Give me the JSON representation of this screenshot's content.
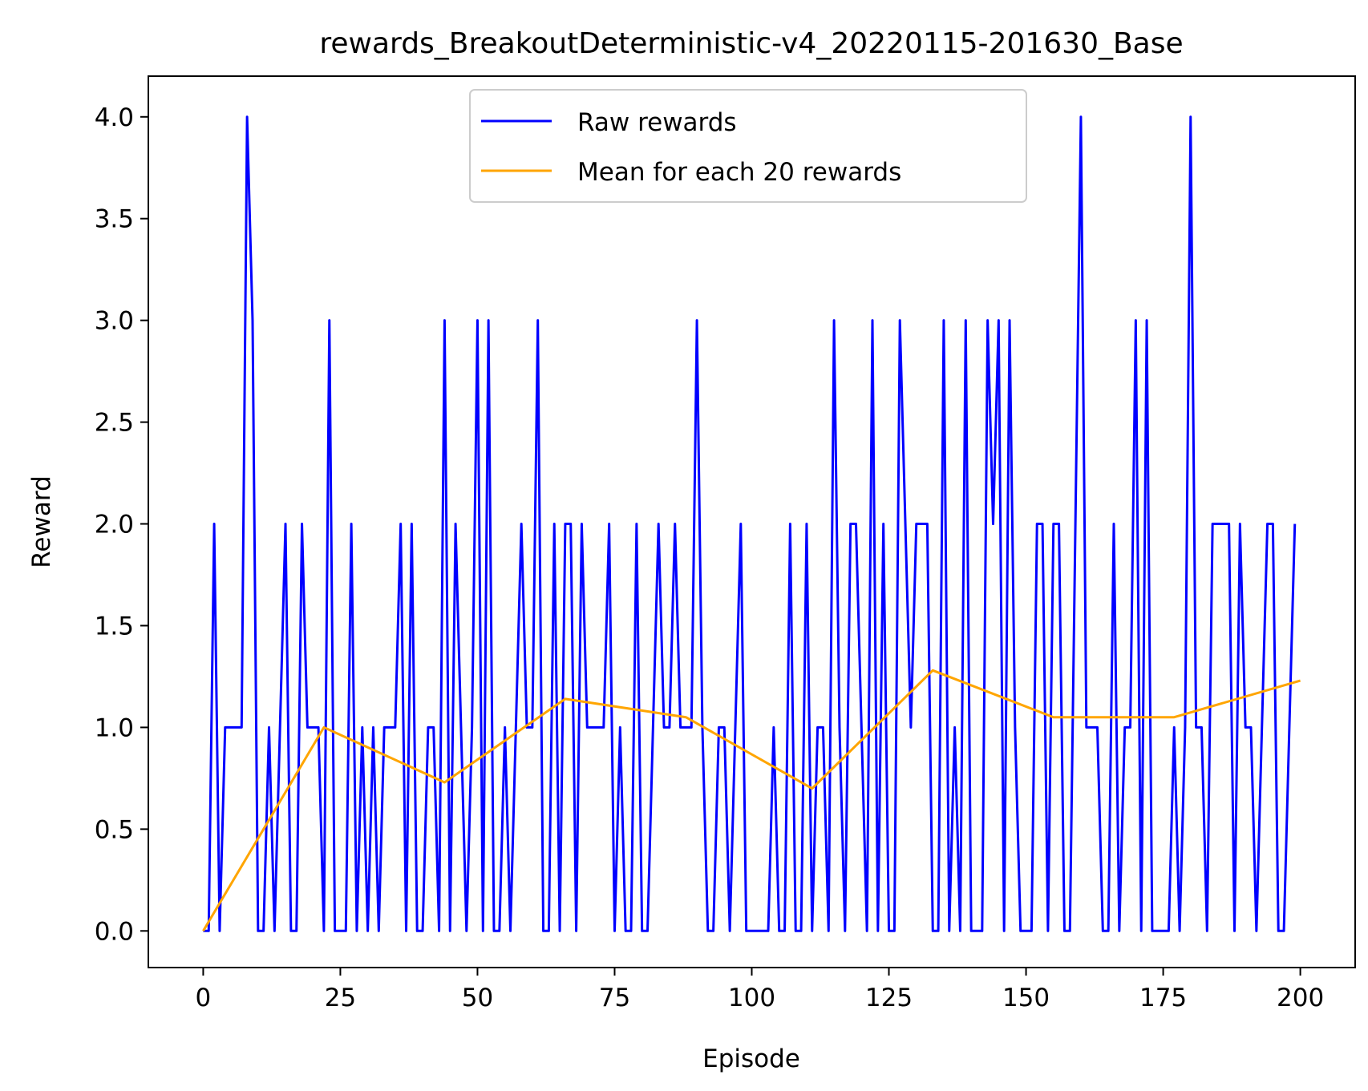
{
  "chart_data": {
    "type": "line",
    "title": "rewards_BreakoutDeterministic-v4_20220115-201630_Base",
    "xlabel": "Episode",
    "ylabel": "Reward",
    "xlim": [
      -10,
      210
    ],
    "ylim": [
      -0.18,
      4.2
    ],
    "xticks": [
      0,
      25,
      50,
      75,
      100,
      125,
      150,
      175,
      200
    ],
    "xtick_labels": [
      "0",
      "25",
      "50",
      "75",
      "100",
      "125",
      "150",
      "175",
      "200"
    ],
    "yticks": [
      0.0,
      0.5,
      1.0,
      1.5,
      2.0,
      2.5,
      3.0,
      3.5,
      4.0
    ],
    "ytick_labels": [
      "0.0",
      "0.5",
      "1.0",
      "1.5",
      "2.0",
      "2.5",
      "3.0",
      "3.5",
      "4.0"
    ],
    "grid": false,
    "legend_position": "top-center",
    "series": [
      {
        "name": "Raw rewards",
        "color": "#0000ff",
        "x": [
          0,
          1,
          2,
          3,
          4,
          5,
          6,
          7,
          8,
          9,
          10,
          11,
          12,
          13,
          14,
          15,
          16,
          17,
          18,
          19,
          20,
          21,
          22,
          23,
          24,
          25,
          26,
          27,
          28,
          29,
          30,
          31,
          32,
          33,
          34,
          35,
          36,
          37,
          38,
          39,
          40,
          41,
          42,
          43,
          44,
          45,
          46,
          47,
          48,
          49,
          50,
          51,
          52,
          53,
          54,
          55,
          56,
          57,
          58,
          59,
          60,
          61,
          62,
          63,
          64,
          65,
          66,
          67,
          68,
          69,
          70,
          71,
          72,
          73,
          74,
          75,
          76,
          77,
          78,
          79,
          80,
          81,
          82,
          83,
          84,
          85,
          86,
          87,
          88,
          89,
          90,
          91,
          92,
          93,
          94,
          95,
          96,
          97,
          98,
          99,
          100,
          101,
          102,
          103,
          104,
          105,
          106,
          107,
          108,
          109,
          110,
          111,
          112,
          113,
          114,
          115,
          116,
          117,
          118,
          119,
          120,
          121,
          122,
          123,
          124,
          125,
          126,
          127,
          128,
          129,
          130,
          131,
          132,
          133,
          134,
          135,
          136,
          137,
          138,
          139,
          140,
          141,
          142,
          143,
          144,
          145,
          146,
          147,
          148,
          149,
          150,
          151,
          152,
          153,
          154,
          155,
          156,
          157,
          158,
          159,
          160,
          161,
          162,
          163,
          164,
          165,
          166,
          167,
          168,
          169,
          170,
          171,
          172,
          173,
          174,
          175,
          176,
          177,
          178,
          179,
          180,
          181,
          182,
          183,
          184,
          185,
          186,
          187,
          188,
          189,
          190,
          191,
          192,
          193,
          194,
          195,
          196,
          197,
          198,
          199
        ],
        "values": [
          0,
          0,
          2,
          0,
          1,
          1,
          1,
          1,
          4,
          3,
          0,
          0,
          1,
          0,
          1,
          2,
          0,
          0,
          2,
          1,
          1,
          1,
          0,
          3,
          0,
          0,
          0,
          2,
          0,
          1,
          0,
          1,
          0,
          1,
          1,
          1,
          2,
          0,
          2,
          0,
          0,
          1,
          1,
          0,
          3,
          0,
          2,
          1,
          0,
          1,
          3,
          0,
          3,
          0,
          0,
          1,
          0,
          1,
          2,
          1,
          1,
          3,
          0,
          0,
          2,
          0,
          2,
          2,
          0,
          2,
          1,
          1,
          1,
          1,
          2,
          0,
          1,
          0,
          0,
          2,
          0,
          0,
          1,
          2,
          1,
          1,
          2,
          1,
          1,
          1,
          3,
          1,
          0,
          0,
          1,
          1,
          0,
          1,
          2,
          0,
          0,
          0,
          0,
          0,
          1,
          0,
          0,
          2,
          0,
          0,
          2,
          0,
          1,
          1,
          0,
          3,
          1,
          0,
          2,
          2,
          1,
          0,
          3,
          0,
          2,
          0,
          0,
          3,
          2,
          1,
          2,
          2,
          2,
          0,
          0,
          3,
          0,
          1,
          0,
          3,
          0,
          0,
          0,
          3,
          2,
          3,
          0,
          3,
          1,
          0,
          0,
          0,
          2,
          2,
          0,
          2,
          2,
          0,
          0,
          2,
          4,
          1,
          1,
          1,
          0,
          0,
          2,
          0,
          1,
          1,
          3,
          0,
          3,
          0,
          0,
          0,
          0,
          1,
          0,
          1,
          4,
          1,
          1,
          0,
          2,
          2,
          2,
          2,
          0,
          2,
          1,
          1,
          0,
          1,
          2,
          2,
          0,
          0,
          1,
          2
        ]
      },
      {
        "name": "Mean for each 20 rewards",
        "color": "#ffa500",
        "x": [
          0,
          22,
          44,
          66,
          88,
          111,
          133,
          155,
          177,
          200
        ],
        "values": [
          0.0,
          1.0,
          0.73,
          1.14,
          1.05,
          0.7,
          1.28,
          1.05,
          1.05,
          1.23
        ]
      }
    ]
  }
}
